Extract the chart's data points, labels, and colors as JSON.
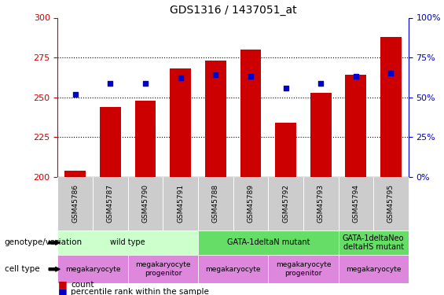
{
  "title": "GDS1316 / 1437051_at",
  "samples": [
    "GSM45786",
    "GSM45787",
    "GSM45790",
    "GSM45791",
    "GSM45788",
    "GSM45789",
    "GSM45792",
    "GSM45793",
    "GSM45794",
    "GSM45795"
  ],
  "counts": [
    204,
    244,
    248,
    268,
    273,
    280,
    234,
    253,
    264,
    288
  ],
  "percentile_ranks": [
    52,
    59,
    59,
    62,
    64,
    63,
    56,
    59,
    63,
    65
  ],
  "ylim_left": [
    200,
    300
  ],
  "ylim_right": [
    0,
    100
  ],
  "yticks_left": [
    200,
    225,
    250,
    275,
    300
  ],
  "yticks_right": [
    0,
    25,
    50,
    75,
    100
  ],
  "bar_color": "#cc0000",
  "dot_color": "#0000cc",
  "bar_width": 0.6,
  "genotype_groups": [
    {
      "label": "wild type",
      "start": 0,
      "end": 3,
      "color": "#ccffcc"
    },
    {
      "label": "GATA-1deltaN mutant",
      "start": 4,
      "end": 7,
      "color": "#66dd66"
    },
    {
      "label": "GATA-1deltaNeo\ndeltaHS mutant",
      "start": 8,
      "end": 9,
      "color": "#66dd66"
    }
  ],
  "cell_type_groups": [
    {
      "label": "megakaryocyte",
      "start": 0,
      "end": 1,
      "color": "#dd88dd"
    },
    {
      "label": "megakaryocyte\nprogenitor",
      "start": 2,
      "end": 3,
      "color": "#dd88dd"
    },
    {
      "label": "megakaryocyte",
      "start": 4,
      "end": 5,
      "color": "#dd88dd"
    },
    {
      "label": "megakaryocyte\nprogenitor",
      "start": 6,
      "end": 7,
      "color": "#dd88dd"
    },
    {
      "label": "megakaryocyte",
      "start": 8,
      "end": 9,
      "color": "#dd88dd"
    }
  ],
  "genotype_label": "genotype/variation",
  "cell_type_label": "cell type",
  "legend_count_label": "count",
  "legend_pct_label": "percentile rank within the sample",
  "left_axis_color": "#cc0000",
  "right_axis_color": "#0000cc",
  "tick_label_bg": "#cccccc"
}
